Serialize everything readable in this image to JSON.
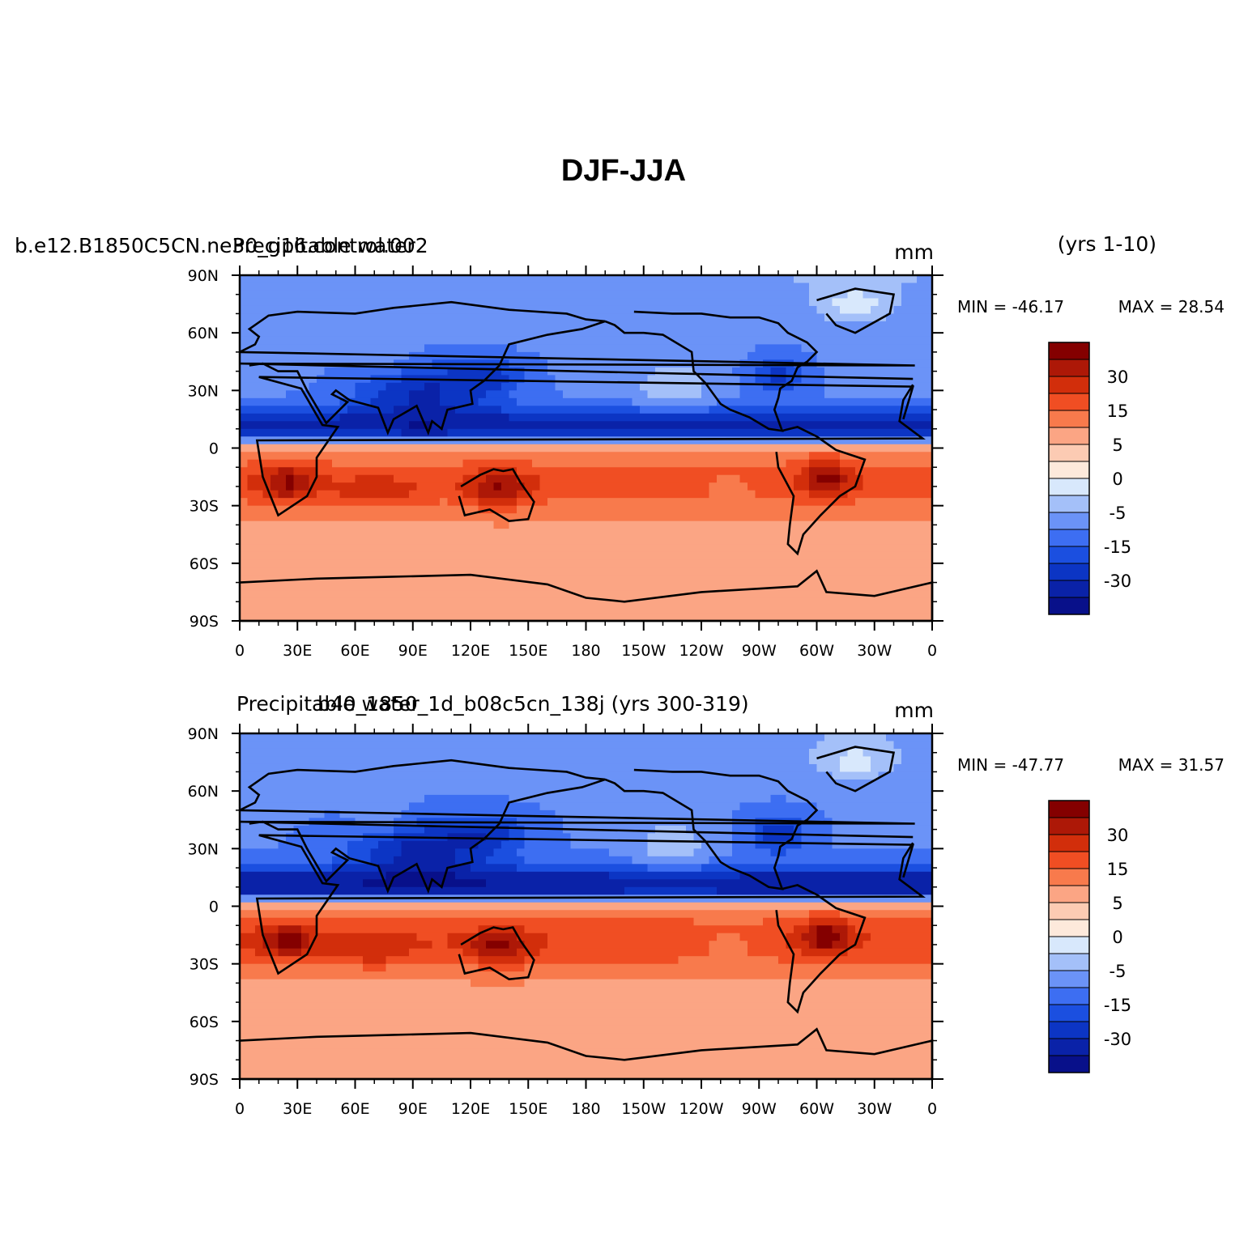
{
  "figure": {
    "title": "DJF-JJA"
  },
  "colorbar": {
    "colors": [
      "#08108a",
      "#0a22a8",
      "#0c35c4",
      "#1b4fe0",
      "#3d6ef2",
      "#6b93f7",
      "#a4c0f9",
      "#d8e8fc",
      "#fde9db",
      "#fccbb3",
      "#fba584",
      "#f87a4c",
      "#f04e23",
      "#d22e0b",
      "#ad1807",
      "#840000"
    ],
    "labels": [
      "-30",
      "-15",
      "-5",
      "0",
      "5",
      "15",
      "30"
    ]
  },
  "panels": [
    {
      "id": "top",
      "left_label": "b.e12.B1850C5CN.ne30_g16.control.002",
      "left_label_overlay": "Precipitable water",
      "center_label": "",
      "right_label": "mm",
      "years": "(yrs 1-10)",
      "min_label": "MIN = -46.17",
      "max_label": "MAX = 28.54",
      "stats": {
        "min": -46.17,
        "max": 28.54
      }
    },
    {
      "id": "bottom",
      "left_label": "Precipitable water",
      "left_label_overlay": "",
      "center_label": "b40_1850_1d_b08c5cn_138j (yrs 300-319)",
      "right_label": "mm",
      "years": "",
      "min_label": "MIN = -47.77",
      "max_label": "MAX = 31.57",
      "stats": {
        "min": -47.77,
        "max": 31.57
      }
    }
  ],
  "axes": {
    "lat_labels": [
      "90N",
      "60N",
      "30N",
      "0",
      "30S",
      "60S",
      "90S"
    ],
    "lon_labels": [
      "0",
      "30E",
      "60E",
      "90E",
      "120E",
      "150E",
      "180",
      "150W",
      "120W",
      "90W",
      "60W",
      "30W",
      "0"
    ]
  }
}
